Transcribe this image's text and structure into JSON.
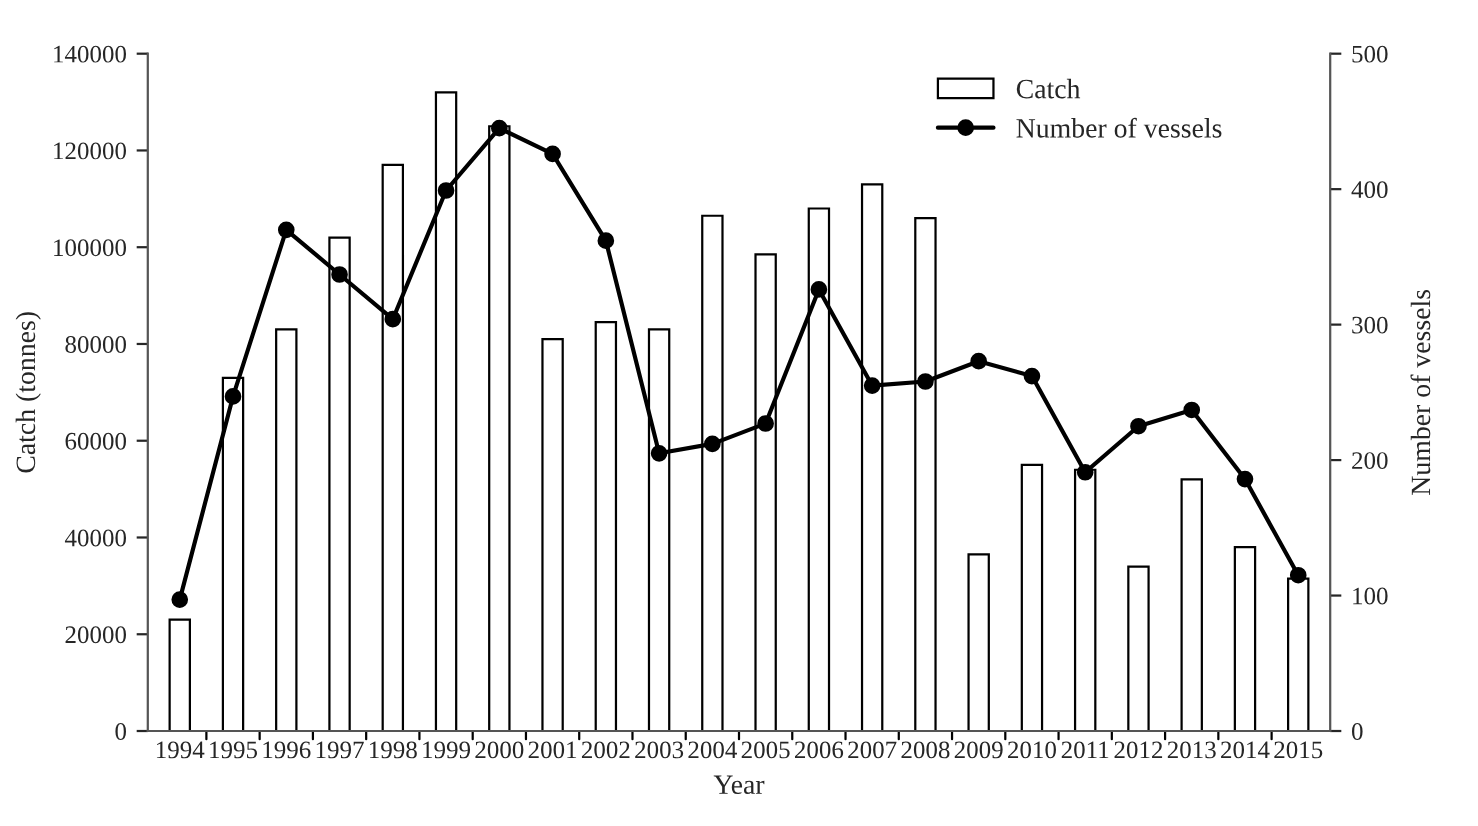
{
  "chart_data": {
    "type": "bar",
    "xlabel": "Year",
    "ylabel": "Catch (tonnes)",
    "y2label": "Number of vessels",
    "categories": [
      "1994",
      "1995",
      "1996",
      "1997",
      "1998",
      "1999",
      "2000",
      "2001",
      "2002",
      "2003",
      "2004",
      "2005",
      "2006",
      "2007",
      "2008",
      "2009",
      "2010",
      "2011",
      "2012",
      "2013",
      "2014",
      "2015"
    ],
    "series": [
      {
        "name": "Catch",
        "color": "#ffffff",
        "values": [
          23000,
          73000,
          83000,
          102000,
          117000,
          132000,
          125000,
          81000,
          84500,
          83000,
          106500,
          98500,
          108000,
          113000,
          106000,
          36500,
          55000,
          54000,
          34000,
          52000,
          38000,
          31500
        ]
      },
      {
        "name": "Number of vessels",
        "type": "line",
        "axis": "y2",
        "color": "#000000",
        "marker": "circle",
        "line_style": "solid",
        "values": [
          97,
          247,
          370,
          337,
          304,
          399,
          445,
          426,
          362,
          205,
          212,
          227,
          326,
          255,
          258,
          273,
          262,
          191,
          225,
          237,
          186,
          115
        ]
      }
    ],
    "ylim": [
      0,
      140000
    ],
    "yticks": [
      0,
      20000,
      40000,
      60000,
      80000,
      100000,
      120000,
      140000
    ],
    "y2lim": [
      0,
      500
    ],
    "y2ticks": [
      0,
      100,
      200,
      300,
      400,
      500
    ],
    "legend": "top right",
    "grid": false
  }
}
